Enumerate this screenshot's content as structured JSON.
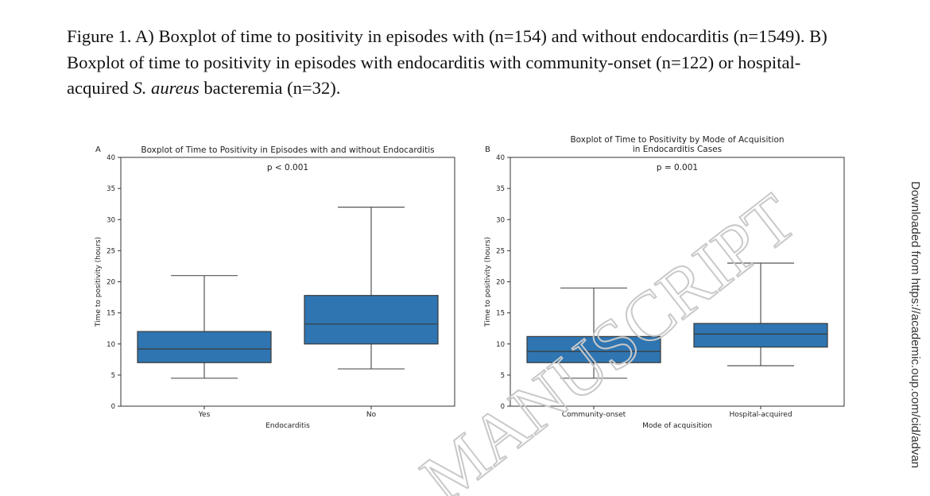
{
  "caption": {
    "part1": "Figure 1. A)  Boxplot of time to positivity in episodes with (n=154) and without endocarditis (n=1549). B) Boxplot of time to positivity in episodes with endocarditis with community-onset (n=122) or hospital-acquired ",
    "species": "S. aureus",
    "part2": " bacteremia (n=32)."
  },
  "side_note": "Downloaded from https://academic.oup.com/cid/advan",
  "watermark": "MANUSCRIPT",
  "colors": {
    "box_fill": "#2f75b1",
    "box_edge": "#3a3a3a",
    "whisker": "#555555",
    "axes": "#333333"
  },
  "chart_data": [
    {
      "type": "box",
      "panel_label": "A",
      "title": [
        "Boxplot of Time to Positivity in Episodes with and without Endocarditis"
      ],
      "annotation": "p < 0.001",
      "xlabel": "Endocarditis",
      "ylabel": "Time to positivity (hours)",
      "ylim": [
        0,
        40
      ],
      "yticks": [
        0,
        5,
        10,
        15,
        20,
        25,
        30,
        35,
        40
      ],
      "grid": false,
      "categories": [
        "Yes",
        "No"
      ],
      "boxes": [
        {
          "min": 4.5,
          "q1": 7.0,
          "median": 9.2,
          "q3": 12.0,
          "max": 21.0
        },
        {
          "min": 6.0,
          "q1": 10.0,
          "median": 13.2,
          "q3": 17.8,
          "max": 32.0
        }
      ]
    },
    {
      "type": "box",
      "panel_label": "B",
      "title": [
        "Boxplot of Time to Positivity by Mode of Acquisition",
        "in Endocarditis Cases"
      ],
      "annotation": "p = 0.001",
      "xlabel": "Mode of acquisition",
      "ylabel": "Time to positivity (hours)",
      "ylim": [
        0,
        40
      ],
      "yticks": [
        0,
        5,
        10,
        15,
        20,
        25,
        30,
        35,
        40
      ],
      "grid": false,
      "categories": [
        "Community-onset",
        "Hospital-acquired"
      ],
      "boxes": [
        {
          "min": 4.5,
          "q1": 7.0,
          "median": 8.8,
          "q3": 11.2,
          "max": 19.0
        },
        {
          "min": 6.5,
          "q1": 9.5,
          "median": 11.6,
          "q3": 13.3,
          "max": 23.0
        }
      ]
    }
  ]
}
